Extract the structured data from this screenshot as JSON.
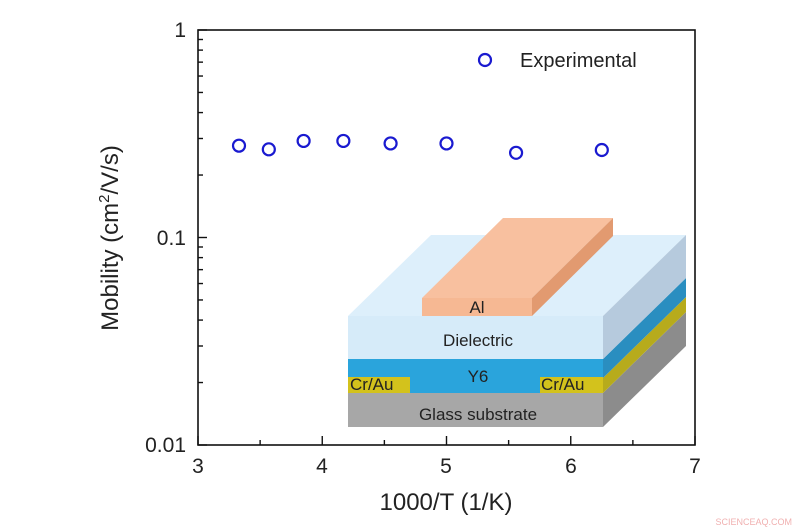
{
  "chart_data": {
    "type": "scatter",
    "title": "",
    "xlabel": "1000/T (1/K)",
    "ylabel_main": "Mobility (cm",
    "ylabel_sup": "2",
    "ylabel_tail": "/V/s)",
    "xlim": [
      3,
      7
    ],
    "ylim": [
      0.01,
      1
    ],
    "yscale": "log",
    "xticks": [
      "3",
      "4",
      "5",
      "6",
      "7"
    ],
    "yticks": [
      "0.01",
      "0.1",
      "1"
    ],
    "legend_position": "top-right",
    "series": [
      {
        "name": "Experimental",
        "marker": "open-circle",
        "color": "#1a1ad0",
        "x": [
          3.33,
          3.57,
          3.85,
          4.17,
          4.55,
          5.0,
          5.56,
          6.25
        ],
        "y": [
          0.277,
          0.266,
          0.292,
          0.292,
          0.284,
          0.284,
          0.256,
          0.264
        ]
      }
    ]
  },
  "inset": {
    "layers": {
      "top_electrode": "Al",
      "dielectric": "Dielectric",
      "semiconductor": "Y6",
      "contact_left": "Cr/Au",
      "contact_right": "Cr/Au",
      "substrate": "Glass substrate"
    },
    "colors": {
      "al": "#f6b893",
      "dielectric": "#d6ebf9",
      "y6": "#2aa4dc",
      "crau": "#d3c21c",
      "glass": "#a7a7a7"
    }
  },
  "watermark": "SCIENCEAQ.COM"
}
